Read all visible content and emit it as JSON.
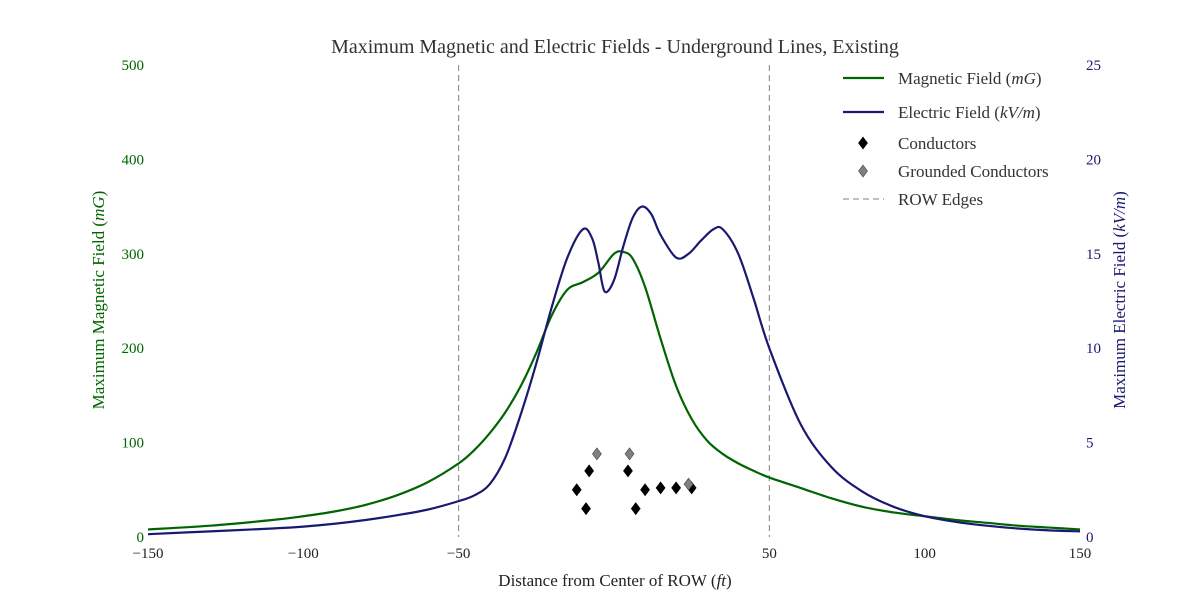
{
  "chart_data": {
    "type": "line",
    "title": "Maximum Magnetic and Electric Fields - Underground Lines, Existing",
    "xlabel": "Distance from Center of ROW (ft)",
    "ylabel_left": "Maximum Magnetic Field (mG)",
    "ylabel_right": "Maximum Electric Field (kV/m)",
    "xlim": [
      -150,
      150
    ],
    "ylim_left": [
      0,
      500
    ],
    "ylim_right": [
      0,
      25
    ],
    "x_ticks": [
      "−150",
      "−100",
      "−50",
      "50",
      "100",
      "150"
    ],
    "x_tick_values": [
      -150,
      -100,
      -50,
      50,
      100,
      150
    ],
    "left_ticks": [
      "0",
      "100",
      "200",
      "300",
      "400",
      "500"
    ],
    "left_tick_values": [
      0,
      100,
      200,
      300,
      400,
      500
    ],
    "right_ticks": [
      "0",
      "5",
      "10",
      "15",
      "20",
      "25"
    ],
    "right_tick_values": [
      0,
      5,
      10,
      15,
      20,
      25
    ],
    "grid": false,
    "legend_position": "top-right",
    "colors": {
      "magnetic": "#006400",
      "electric": "#191970",
      "conductor": "#000000",
      "grounded": "#7f7f7f",
      "row_edge": "#7f7f7f"
    },
    "series": [
      {
        "name": "Magnetic Field (mG)",
        "axis": "left",
        "x": [
          -150,
          -130,
          -110,
          -100,
          -90,
          -80,
          -70,
          -60,
          -50,
          -45,
          -40,
          -35,
          -30,
          -25,
          -20,
          -15,
          -10,
          -5,
          0,
          3,
          6,
          10,
          15,
          20,
          25,
          30,
          35,
          40,
          45,
          50,
          60,
          70,
          80,
          90,
          100,
          110,
          120,
          130,
          140,
          150
        ],
        "y": [
          8,
          12,
          18,
          22,
          27,
          34,
          44,
          58,
          78,
          92,
          110,
          132,
          160,
          195,
          235,
          262,
          270,
          280,
          300,
          302,
          295,
          265,
          210,
          160,
          125,
          102,
          88,
          78,
          70,
          63,
          52,
          41,
          32,
          26,
          22,
          18,
          15,
          12,
          10,
          8
        ]
      },
      {
        "name": "Electric Field (kV/m)",
        "axis": "right",
        "x": [
          -150,
          -130,
          -110,
          -100,
          -90,
          -80,
          -70,
          -60,
          -50,
          -45,
          -40,
          -35,
          -30,
          -25,
          -20,
          -15,
          -10,
          -7,
          -5,
          -3,
          0,
          3,
          6,
          9,
          12,
          15,
          20,
          24,
          28,
          32,
          35,
          40,
          45,
          50,
          60,
          70,
          80,
          90,
          100,
          110,
          120,
          130,
          140,
          150
        ],
        "y": [
          0.15,
          0.3,
          0.45,
          0.55,
          0.7,
          0.9,
          1.15,
          1.45,
          1.9,
          2.2,
          2.8,
          4.2,
          6.5,
          9.2,
          12.2,
          14.8,
          16.3,
          15.8,
          14.5,
          13.0,
          13.6,
          15.4,
          16.9,
          17.5,
          17.1,
          16.0,
          14.8,
          15.0,
          15.7,
          16.3,
          16.3,
          15.0,
          12.6,
          10.0,
          6.0,
          3.7,
          2.4,
          1.6,
          1.1,
          0.8,
          0.6,
          0.45,
          0.35,
          0.3
        ]
      }
    ],
    "conductors": {
      "name": "Conductors",
      "x": [
        -12,
        -9,
        -8,
        4.5,
        7,
        10,
        15,
        20,
        25
      ],
      "y": [
        50,
        30,
        70,
        70,
        30,
        50,
        52,
        52,
        52
      ]
    },
    "grounded_conductors": {
      "name": "Grounded Conductors",
      "x": [
        -5.5,
        5,
        24
      ],
      "y": [
        88,
        88,
        56
      ]
    },
    "row_edges": {
      "name": "ROW Edges",
      "x": [
        -50,
        50
      ]
    },
    "legend": [
      {
        "label": "Magnetic Field (mG)",
        "kind": "line",
        "color": "#006400"
      },
      {
        "label": "Electric Field (kV/m)",
        "kind": "line",
        "color": "#191970"
      },
      {
        "label": "Conductors",
        "kind": "diamond",
        "color": "#000000"
      },
      {
        "label": "Grounded Conductors",
        "kind": "diamond",
        "color": "#7f7f7f"
      },
      {
        "label": "ROW Edges",
        "kind": "dashed",
        "color": "#7f7f7f"
      }
    ]
  }
}
